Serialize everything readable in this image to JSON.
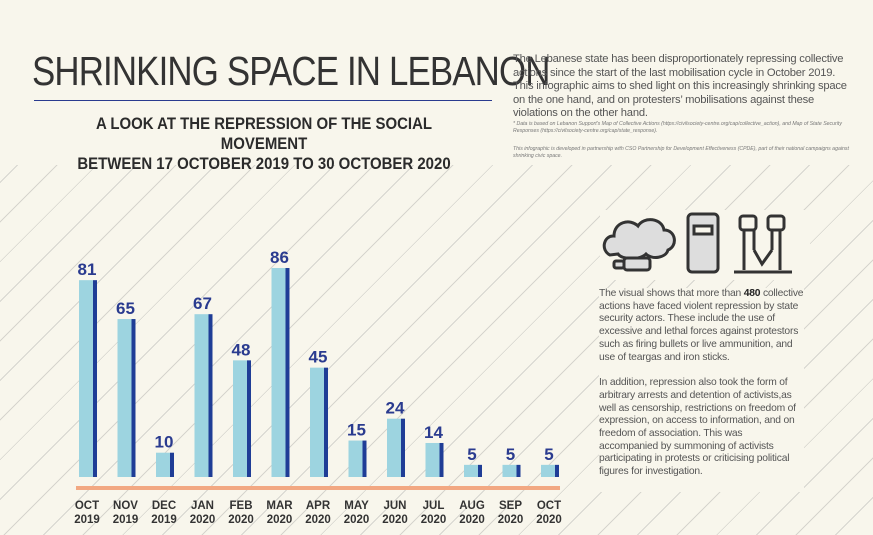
{
  "header": {
    "title": "SHRINKING SPACE IN LEBANON",
    "subtitle_line1": "A LOOK AT THE REPRESSION OF THE SOCIAL MOVEMENT",
    "subtitle_line2": "BETWEEN 17 OCTOBER 2019 TO 30 OCTOBER 2020"
  },
  "intro": "The Lebanese state has been disproportionately repressing collective actions since the start of the last mobilisation cycle in October 2019. This infographic aims to shed light on this increasingly shrinking space on the one hand, and on protesters’ mobilisations against these violations on the other hand.",
  "notes": {
    "data_source": "* Data is based on Lebanon Support's Map of Collective Actions (https://civilsociety-centre.org/cap/collective_action), and Map of State Security Responses (https://civilsociety-centre.org/cap/state_response).",
    "partnership": "This infographic is developed in partnership with CSO Partnership for Development Effectiveness (CPDE), part of their national campaigns against shrinking civic space."
  },
  "side": {
    "p1_before": "The visual shows that more than ",
    "p1_bold": "480",
    "p1_after": " collective actions have faced violent repression by state security actors. These include the use of excessive and lethal forces against protestors such as firing bullets or live ammunition, and use of teargas and iron sticks.",
    "p2": "In addition, repression also took the form of arbitrary arrests and detention of activists,as well as censorship, restrictions on freedom of expression, on access to information, and on freedom of association. This was accompanied by summoning of activists participating in protests or criticising political figures for investigation.",
    "icons": [
      "teargas-cloud-icon",
      "riot-shield-icon",
      "handcuffed-fists-icon"
    ]
  },
  "colors": {
    "bar": "#9dd4e0",
    "bar_edge": "#1f3d96",
    "label": "#2a3b8f",
    "axis": "#f2a882",
    "text": "#333333"
  },
  "chart_data": {
    "type": "bar",
    "categories": [
      [
        "OCT",
        "2019"
      ],
      [
        "NOV",
        "2019"
      ],
      [
        "DEC",
        "2019"
      ],
      [
        "JAN",
        "2020"
      ],
      [
        "FEB",
        "2020"
      ],
      [
        "MAR",
        "2020"
      ],
      [
        "APR",
        "2020"
      ],
      [
        "MAY",
        "2020"
      ],
      [
        "JUN",
        "2020"
      ],
      [
        "JUL",
        "2020"
      ],
      [
        "AUG",
        "2020"
      ],
      [
        "SEP",
        "2020"
      ],
      [
        "OCT",
        "2020"
      ]
    ],
    "values": [
      81,
      65,
      10,
      67,
      48,
      86,
      45,
      15,
      24,
      14,
      5,
      5,
      5
    ],
    "xlabel": "",
    "ylabel": "",
    "grid": false,
    "data_labels": true
  }
}
